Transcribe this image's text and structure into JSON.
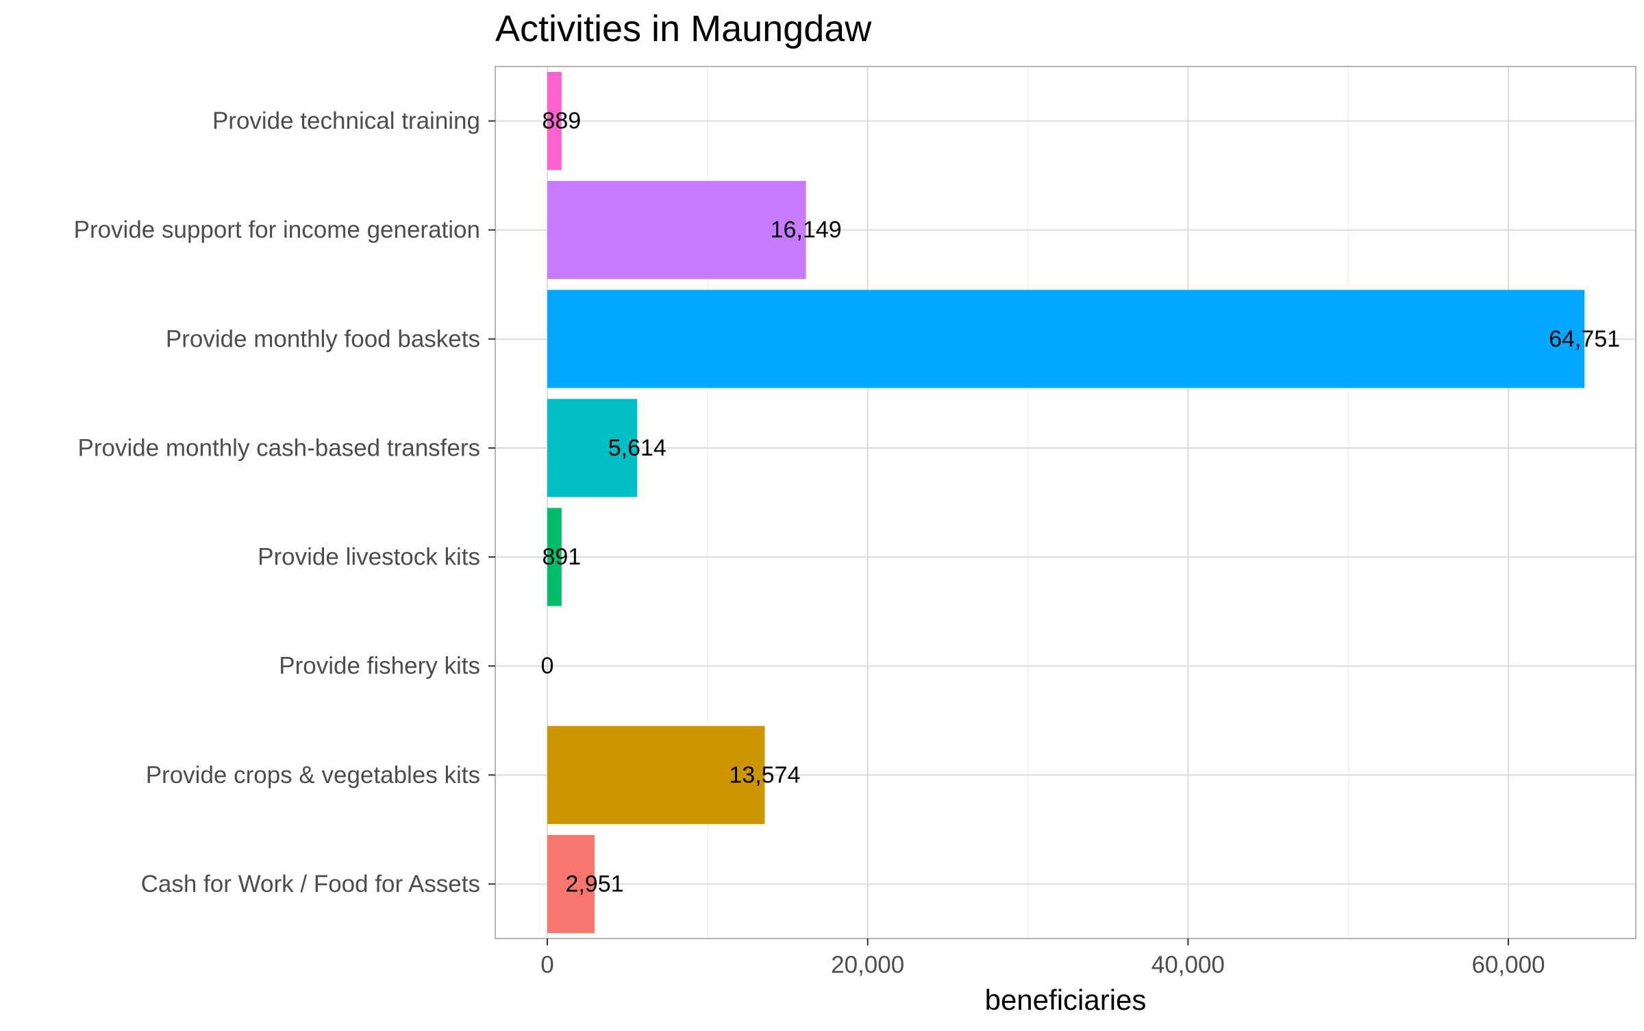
{
  "chart_data": {
    "type": "bar",
    "orientation": "horizontal",
    "title": "Activities in Maungdaw",
    "xlabel": "beneficiaries",
    "ylabel": "",
    "xlim": [
      0,
      67000
    ],
    "x_ticks": [
      0,
      20000,
      40000,
      60000
    ],
    "x_tick_labels": [
      "0",
      "20,000",
      "40,000",
      "60,000"
    ],
    "grid": true,
    "legend": "none",
    "categories": [
      "Cash for Work / Food for Assets",
      "Provide crops & vegetables kits",
      "Provide fishery kits",
      "Provide livestock kits",
      "Provide monthly cash-based transfers",
      "Provide monthly food baskets",
      "Provide support for income generation",
      "Provide technical training"
    ],
    "values": [
      2951,
      13574,
      0,
      891,
      5614,
      64751,
      16149,
      889
    ],
    "value_labels": [
      "2,951",
      "13,574",
      "0",
      "891",
      "5,614",
      "64,751",
      "16,149",
      "889"
    ],
    "colors": [
      "#F8766D",
      "#CD9600",
      "#7CAE00",
      "#00BE67",
      "#00BFC4",
      "#00A9FF",
      "#C77CFF",
      "#FF61CC"
    ]
  }
}
